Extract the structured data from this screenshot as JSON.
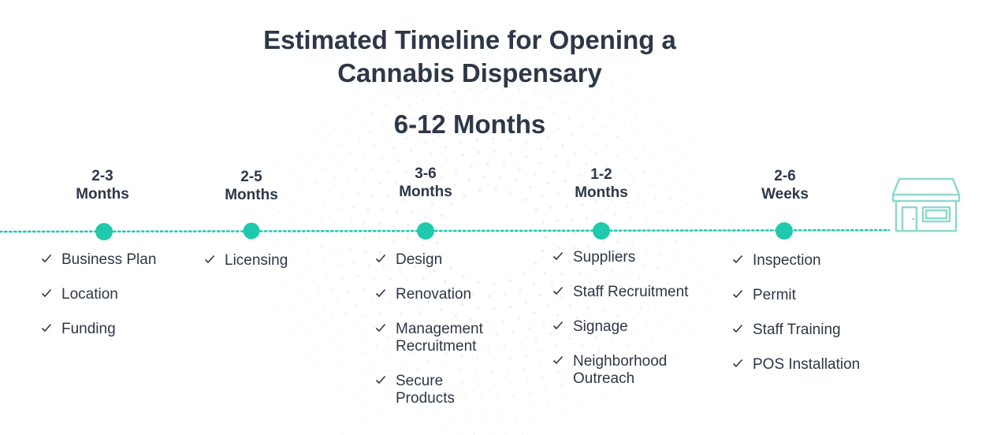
{
  "header": {
    "title_line1": "Estimated Timeline for Opening a",
    "title_line2": "Cannabis Dispensary",
    "total_duration": "6-12 Months"
  },
  "colors": {
    "accent": "#1ec9ad",
    "text": "#2e3747",
    "icon": "#8fd8cf"
  },
  "phases": [
    {
      "duration_line1": "2-3",
      "duration_line2": "Months",
      "tasks": [
        "Business Plan",
        "Location",
        "Funding"
      ]
    },
    {
      "duration_line1": "2-5",
      "duration_line2": "Months",
      "tasks": [
        "Licensing"
      ]
    },
    {
      "duration_line1": "3-6",
      "duration_line2": "Months",
      "tasks": [
        "Design",
        "Renovation",
        "Management Recruitment",
        "Secure Products"
      ]
    },
    {
      "duration_line1": "1-2",
      "duration_line2": "Months",
      "tasks": [
        "Suppliers",
        "Staff Recruitment",
        "Signage",
        "Neighborhood Outreach"
      ]
    },
    {
      "duration_line1": "2-6",
      "duration_line2": "Weeks",
      "tasks": [
        "Inspection",
        "Permit",
        "Staff Training",
        "POS Installation"
      ]
    }
  ],
  "end_icon": "storefront-icon",
  "check_icon": "checkmark-icon"
}
